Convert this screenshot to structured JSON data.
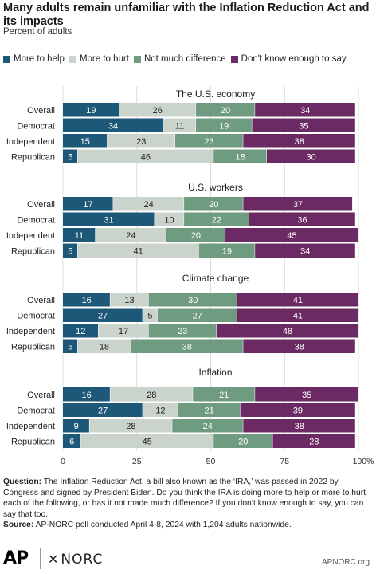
{
  "header": {
    "title": "Many adults remain unfamiliar with the Inflation Reduction Act and its impacts",
    "subtitle": "Percent of adults"
  },
  "legend": [
    {
      "label": "More to help",
      "color": "#1d5878"
    },
    {
      "label": "More to hurt",
      "color": "#cad4cd"
    },
    {
      "label": "Not much difference",
      "color": "#6f9b80"
    },
    {
      "label": "Don't know enough to say",
      "color": "#6b2a63"
    }
  ],
  "chart_data": {
    "type": "bar",
    "orientation": "horizontal",
    "stacked": true,
    "xlim": [
      0,
      100
    ],
    "xticks": [
      "0",
      "25",
      "50",
      "75",
      "100%"
    ],
    "series_names": [
      "More to help",
      "More to hurt",
      "Not much difference",
      "Don't know enough to say"
    ],
    "colors": [
      "#1d5878",
      "#cad4cd",
      "#6f9b80",
      "#6b2a63"
    ],
    "label_colors": [
      "#ffffff",
      "#222222",
      "#ffffff",
      "#ffffff"
    ],
    "groups": [
      {
        "title": "The U.S. economy",
        "rows": [
          {
            "label": "Overall",
            "values": [
              19,
              26,
              20,
              34
            ]
          },
          {
            "label": "Democrat",
            "values": [
              34,
              11,
              19,
              35
            ]
          },
          {
            "label": "Independent",
            "values": [
              15,
              23,
              23,
              38
            ]
          },
          {
            "label": "Republican",
            "values": [
              5,
              46,
              18,
              30
            ]
          }
        ]
      },
      {
        "title": "U.S. workers",
        "rows": [
          {
            "label": "Overall",
            "values": [
              17,
              24,
              20,
              37
            ]
          },
          {
            "label": "Democrat",
            "values": [
              31,
              10,
              22,
              36
            ]
          },
          {
            "label": "Independent",
            "values": [
              11,
              24,
              20,
              45
            ]
          },
          {
            "label": "Republican",
            "values": [
              5,
              41,
              19,
              34
            ]
          }
        ]
      },
      {
        "title": "Climate change",
        "rows": [
          {
            "label": "Overall",
            "values": [
              16,
              13,
              30,
              41
            ]
          },
          {
            "label": "Democrat",
            "values": [
              27,
              5,
              27,
              41
            ]
          },
          {
            "label": "Independent",
            "values": [
              12,
              17,
              23,
              48
            ]
          },
          {
            "label": "Republican",
            "values": [
              5,
              18,
              38,
              38
            ]
          }
        ]
      },
      {
        "title": "Inflation",
        "rows": [
          {
            "label": "Overall",
            "values": [
              16,
              28,
              21,
              35
            ]
          },
          {
            "label": "Democrat",
            "values": [
              27,
              12,
              21,
              39
            ]
          },
          {
            "label": "Independent",
            "values": [
              9,
              28,
              24,
              38
            ]
          },
          {
            "label": "Republican",
            "values": [
              6,
              45,
              20,
              28
            ]
          }
        ]
      }
    ]
  },
  "footnote": {
    "question_label": "Question:",
    "question_text": "The Inflation Reduction Act, a bill also known as the ‘IRA,’ was passed in 2022 by Congress and signed by President Biden. Do you think the IRA is doing more to help or more to hurt each of the following, or has it not made much difference? If you don’t know enough to say, you can say that too.",
    "source_label": "Source:",
    "source_text": "AP-NORC poll conducted April 4-8, 2024 with 1,204 adults nationwide."
  },
  "footer": {
    "ap_logo": "AP",
    "norc_logo": "NORC",
    "site": "APNORC.org"
  }
}
